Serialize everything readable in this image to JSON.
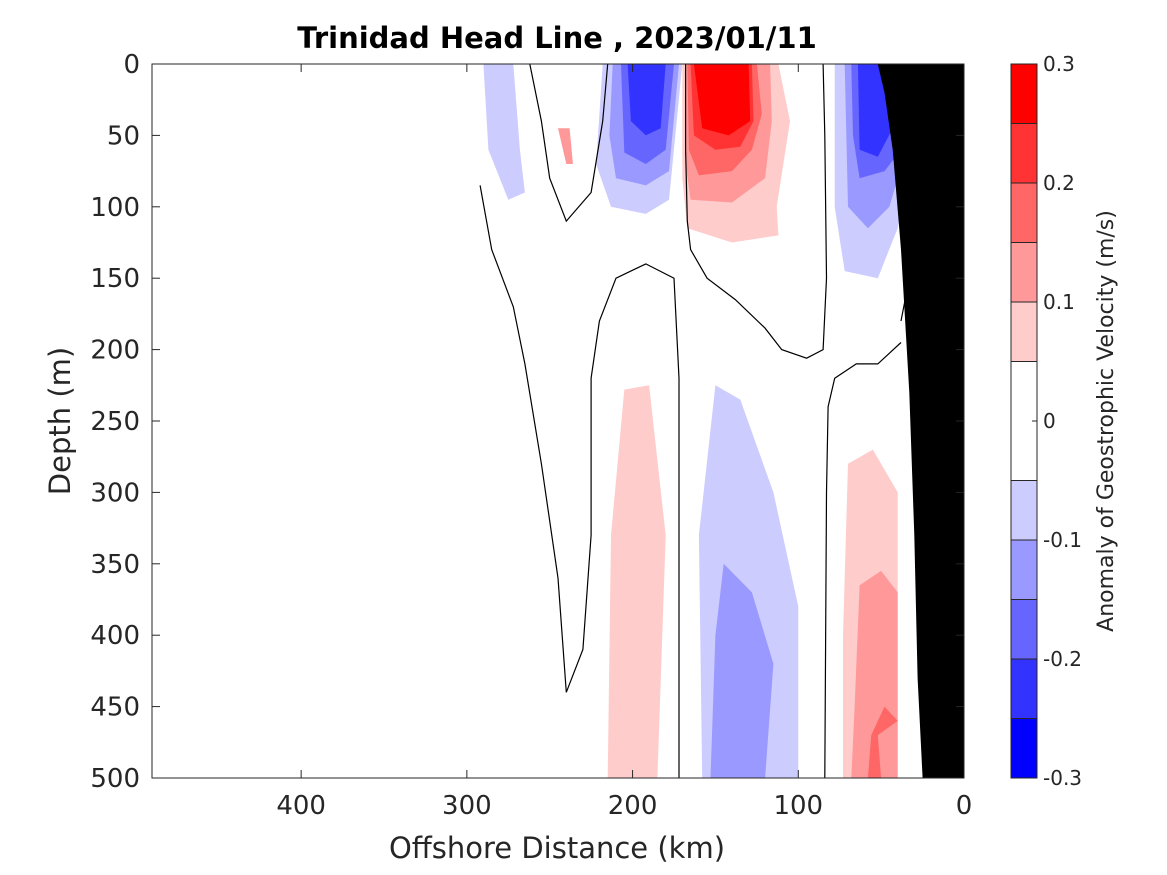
{
  "chart_data": {
    "type": "contour",
    "title": "Trinidad Head Line , 2023/01/11",
    "xlabel": "Offshore Distance (km)",
    "ylabel": "Depth (m)",
    "xlim": [
      490,
      0
    ],
    "ylim": [
      0,
      500
    ],
    "x_ticks": [
      400,
      300,
      200,
      100,
      0
    ],
    "x_tick_labels": [
      "400",
      "300",
      "200",
      "100",
      "0"
    ],
    "y_ticks": [
      0,
      50,
      100,
      150,
      200,
      250,
      300,
      350,
      400,
      450,
      500
    ],
    "y_tick_labels": [
      "0",
      "50",
      "100",
      "150",
      "200",
      "250",
      "300",
      "350",
      "400",
      "450",
      "500"
    ],
    "y_reversed": true,
    "colorbar": {
      "label": "Anomaly of Geostrophic Velocity (m/s)",
      "range": [
        -0.3,
        0.3
      ],
      "ticks": [
        -0.3,
        -0.2,
        -0.1,
        0,
        0.1,
        0.2,
        0.3
      ],
      "tick_labels": [
        "-0.3",
        "-0.2",
        "-0.1",
        "0",
        "0.1",
        "0.2",
        "0.3"
      ],
      "levels": [
        -0.3,
        -0.25,
        -0.2,
        -0.15,
        -0.1,
        -0.05,
        0.05,
        0.1,
        0.15,
        0.2,
        0.25,
        0.3
      ],
      "colors": [
        "#0000ff",
        "#3333ff",
        "#6666ff",
        "#9999ff",
        "#ccccff",
        "#ffffff",
        "#ffcccc",
        "#ff9999",
        "#ff6666",
        "#ff3333",
        "#ff0000"
      ]
    },
    "regions": [
      {
        "name": "pos1-upper-core",
        "level": 0.05,
        "points": [
          [
            170,
            0
          ],
          [
            112,
            0
          ],
          [
            105,
            40
          ],
          [
            113,
            100
          ],
          [
            112,
            120
          ],
          [
            140,
            125
          ],
          [
            167,
            115
          ],
          [
            170,
            80
          ]
        ]
      },
      {
        "name": "pos2-upper-core",
        "level": 0.1,
        "points": [
          [
            168,
            0
          ],
          [
            117,
            0
          ],
          [
            116,
            40
          ],
          [
            120,
            80
          ],
          [
            140,
            97
          ],
          [
            165,
            95
          ],
          [
            168,
            70
          ]
        ]
      },
      {
        "name": "pos3-upper-core",
        "level": 0.15,
        "points": [
          [
            167,
            0
          ],
          [
            125,
            0
          ],
          [
            122,
            35
          ],
          [
            128,
            60
          ],
          [
            140,
            75
          ],
          [
            160,
            78
          ],
          [
            166,
            60
          ]
        ]
      },
      {
        "name": "pos4-upper-core",
        "level": 0.2,
        "points": [
          [
            165,
            0
          ],
          [
            128,
            0
          ],
          [
            127,
            40
          ],
          [
            135,
            58
          ],
          [
            150,
            60
          ],
          [
            163,
            50
          ]
        ]
      },
      {
        "name": "pos5-upper-core",
        "level": 0.25,
        "points": [
          [
            163,
            0
          ],
          [
            130,
            0
          ],
          [
            129,
            40
          ],
          [
            142,
            50
          ],
          [
            158,
            45
          ]
        ]
      },
      {
        "name": "neg1-upper-left",
        "level": -0.1,
        "points": [
          [
            218,
            0
          ],
          [
            170,
            0
          ],
          [
            178,
            95
          ],
          [
            192,
            105
          ],
          [
            213,
            100
          ],
          [
            222,
            70
          ]
        ]
      },
      {
        "name": "neg2-upper-left",
        "level": -0.15,
        "points": [
          [
            212,
            0
          ],
          [
            172,
            0
          ],
          [
            178,
            75
          ],
          [
            192,
            85
          ],
          [
            210,
            80
          ],
          [
            214,
            50
          ]
        ]
      },
      {
        "name": "neg3-upper-left",
        "level": -0.2,
        "points": [
          [
            207,
            0
          ],
          [
            175,
            0
          ],
          [
            180,
            60
          ],
          [
            192,
            70
          ],
          [
            205,
            62
          ]
        ]
      },
      {
        "name": "neg4-upper-left",
        "level": -0.25,
        "points": [
          [
            203,
            0
          ],
          [
            180,
            0
          ],
          [
            183,
            45
          ],
          [
            192,
            50
          ],
          [
            201,
            40
          ]
        ]
      },
      {
        "name": "neg1-upper-right",
        "level": -0.1,
        "points": [
          [
            78,
            0
          ],
          [
            30,
            0
          ],
          [
            32,
            60
          ],
          [
            40,
            115
          ],
          [
            52,
            150
          ],
          [
            72,
            145
          ],
          [
            78,
            100
          ]
        ]
      },
      {
        "name": "neg2-upper-right",
        "level": -0.15,
        "points": [
          [
            72,
            0
          ],
          [
            33,
            0
          ],
          [
            35,
            60
          ],
          [
            45,
            100
          ],
          [
            58,
            115
          ],
          [
            70,
            100
          ]
        ]
      },
      {
        "name": "neg3-upper-right",
        "level": -0.2,
        "points": [
          [
            68,
            0
          ],
          [
            36,
            0
          ],
          [
            38,
            60
          ],
          [
            48,
            75
          ],
          [
            63,
            80
          ],
          [
            67,
            50
          ]
        ]
      },
      {
        "name": "neg4-upper-right",
        "level": -0.25,
        "points": [
          [
            64,
            0
          ],
          [
            40,
            0
          ],
          [
            43,
            45
          ],
          [
            52,
            65
          ],
          [
            63,
            60
          ]
        ]
      },
      {
        "name": "neg1-far-left",
        "level": -0.1,
        "points": [
          [
            290,
            0
          ],
          [
            272,
            0
          ],
          [
            268,
            60
          ],
          [
            265,
            90
          ],
          [
            275,
            95
          ],
          [
            287,
            60
          ]
        ]
      },
      {
        "name": "pos1-small-spot",
        "level": 0.1,
        "points": [
          [
            245,
            45
          ],
          [
            240,
            70
          ],
          [
            236,
            70
          ],
          [
            238,
            45
          ]
        ]
      },
      {
        "name": "pos1-deep-left",
        "level": 0.05,
        "points": [
          [
            215,
            500
          ],
          [
            185,
            500
          ],
          [
            180,
            330
          ],
          [
            190,
            225
          ],
          [
            205,
            228
          ],
          [
            213,
            330
          ]
        ]
      },
      {
        "name": "neg1-deep",
        "level": -0.1,
        "points": [
          [
            158,
            500
          ],
          [
            100,
            500
          ],
          [
            100,
            380
          ],
          [
            115,
            300
          ],
          [
            135,
            235
          ],
          [
            150,
            225
          ],
          [
            160,
            330
          ]
        ]
      },
      {
        "name": "neg2-deep",
        "level": -0.15,
        "points": [
          [
            153,
            500
          ],
          [
            120,
            500
          ],
          [
            115,
            420
          ],
          [
            128,
            370
          ],
          [
            145,
            350
          ],
          [
            150,
            400
          ]
        ]
      },
      {
        "name": "pos1-deep-right",
        "level": 0.05,
        "points": [
          [
            73,
            500
          ],
          [
            40,
            500
          ],
          [
            40,
            300
          ],
          [
            55,
            270
          ],
          [
            70,
            280
          ],
          [
            73,
            400
          ]
        ]
      },
      {
        "name": "pos2-deep-right",
        "level": 0.1,
        "points": [
          [
            68,
            500
          ],
          [
            40,
            500
          ],
          [
            40,
            370
          ],
          [
            50,
            355
          ],
          [
            63,
            365
          ],
          [
            66,
            450
          ]
        ]
      },
      {
        "name": "pos3-deep-right",
        "level": 0.15,
        "points": [
          [
            58,
            500
          ],
          [
            50,
            500
          ],
          [
            52,
            470
          ],
          [
            40,
            460
          ],
          [
            48,
            450
          ],
          [
            56,
            470
          ]
        ]
      }
    ],
    "contour_lines": [
      [
        [
          292,
          85
        ],
        [
          285,
          130
        ],
        [
          272,
          170
        ],
        [
          265,
          210
        ],
        [
          255,
          280
        ],
        [
          245,
          360
        ],
        [
          240,
          440
        ],
        [
          230,
          410
        ],
        [
          225,
          330
        ],
        [
          225,
          220
        ],
        [
          220,
          180
        ],
        [
          210,
          150
        ],
        [
          192,
          140
        ],
        [
          175,
          150
        ],
        [
          172,
          220
        ],
        [
          172,
          500
        ]
      ],
      [
        [
          262,
          0
        ],
        [
          255,
          40
        ],
        [
          250,
          80
        ],
        [
          240,
          110
        ],
        [
          225,
          90
        ],
        [
          218,
          40
        ],
        [
          215,
          0
        ]
      ],
      [
        [
          168,
          0
        ],
        [
          168,
          60
        ],
        [
          167,
          110
        ],
        [
          165,
          130
        ],
        [
          155,
          150
        ],
        [
          138,
          165
        ],
        [
          120,
          185
        ],
        [
          110,
          200
        ],
        [
          95,
          206
        ],
        [
          85,
          200
        ],
        [
          83,
          150
        ],
        [
          84,
          50
        ],
        [
          85,
          0
        ]
      ],
      [
        [
          84,
          500
        ],
        [
          83,
          300
        ],
        [
          82,
          240
        ],
        [
          78,
          220
        ],
        [
          65,
          210
        ],
        [
          52,
          210
        ],
        [
          38,
          195
        ]
      ],
      [
        [
          30,
          70
        ],
        [
          33,
          150
        ],
        [
          38,
          180
        ]
      ]
    ],
    "topography": [
      [
        0,
        0
      ],
      [
        0,
        500
      ],
      [
        25,
        500
      ],
      [
        28,
        430
      ],
      [
        30,
        330
      ],
      [
        33,
        230
      ],
      [
        38,
        130
      ],
      [
        43,
        60
      ],
      [
        48,
        20
      ],
      [
        52,
        0
      ]
    ]
  }
}
